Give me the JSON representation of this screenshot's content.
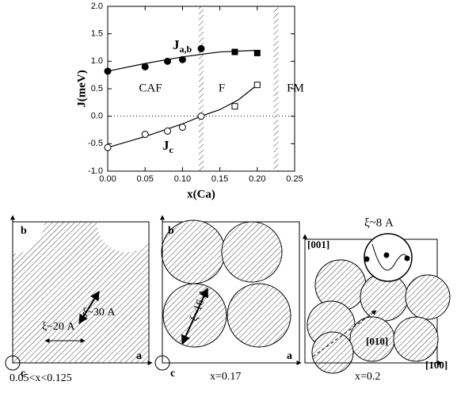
{
  "chart_data": {
    "type": "scatter",
    "xlabel": "x(Ca)",
    "ylabel": "J(meV)",
    "xlim": [
      0,
      0.25
    ],
    "ylim": [
      -1,
      2
    ],
    "xticks": [
      {
        "value": 0,
        "label": "0.00"
      },
      {
        "value": 0.05,
        "label": "0.05"
      },
      {
        "value": 0.1,
        "label": "0.10"
      },
      {
        "value": 0.15,
        "label": "0.15"
      },
      {
        "value": 0.2,
        "label": "0.20"
      },
      {
        "value": 0.25,
        "label": "0.25"
      }
    ],
    "yticks": [
      {
        "value": -1,
        "label": "-1.0"
      },
      {
        "value": -0.5,
        "label": "-0.5"
      },
      {
        "value": 0,
        "label": "0.0"
      },
      {
        "value": 0.5,
        "label": "0.5"
      },
      {
        "value": 1,
        "label": "1.0"
      },
      {
        "value": 1.5,
        "label": "1.5"
      },
      {
        "value": 2,
        "label": "2.0"
      }
    ],
    "reference_line": 0,
    "phase_boundaries": [
      0.125,
      0.225
    ],
    "regions": [
      "CAF",
      "F",
      "FM"
    ],
    "annotations": [
      {
        "text": "J",
        "sub": "a,b"
      },
      {
        "text": "J",
        "sub": "c"
      }
    ],
    "series": [
      {
        "marker": "circle",
        "color": "#000",
        "fill": "#000",
        "x": [
          0,
          0.05,
          0.08,
          0.1,
          0.125
        ],
        "values": [
          0.82,
          0.9,
          1.0,
          1.03,
          1.23
        ]
      },
      {
        "marker": "square",
        "color": "#000",
        "fill": "#000",
        "x": [
          0.17,
          0.2
        ],
        "values": [
          1.17,
          1.15
        ]
      },
      {
        "marker": "circle",
        "color": "#000",
        "fill": "#fff",
        "x": [
          0,
          0.05,
          0.08,
          0.1,
          0.125
        ],
        "values": [
          -0.57,
          -0.33,
          -0.27,
          -0.2,
          0.0
        ]
      },
      {
        "marker": "square",
        "color": "#000",
        "fill": "#fff",
        "x": [
          0.17,
          0.2
        ],
        "values": [
          0.18,
          0.57
        ]
      },
      {
        "marker": "line",
        "color": "#000",
        "x": [
          0,
          0.05,
          0.1,
          0.15,
          0.2
        ],
        "values": [
          0.82,
          0.96,
          1.08,
          1.17,
          1.2
        ]
      },
      {
        "marker": "line",
        "color": "#000",
        "x": [
          0,
          0.05,
          0.1,
          0.125,
          0.15,
          0.175,
          0.2
        ],
        "values": [
          -0.57,
          -0.37,
          -0.14,
          0,
          0.12,
          0.3,
          0.57
        ]
      }
    ]
  },
  "panels": [
    {
      "axes": [
        "b",
        "a",
        "c"
      ],
      "lengths": [
        "ξ~30 A",
        "ξ~20 A"
      ],
      "caption": "0.05<x<0.125"
    },
    {
      "axes": [
        "b",
        "a",
        "c"
      ],
      "lengths": [
        "ξ~16 A"
      ],
      "caption": "x=0.17"
    },
    {
      "axes": [
        "[001]",
        "[010]",
        "[100]"
      ],
      "lengths": [
        "ξ~8 A"
      ],
      "caption": "x=0.2"
    }
  ]
}
